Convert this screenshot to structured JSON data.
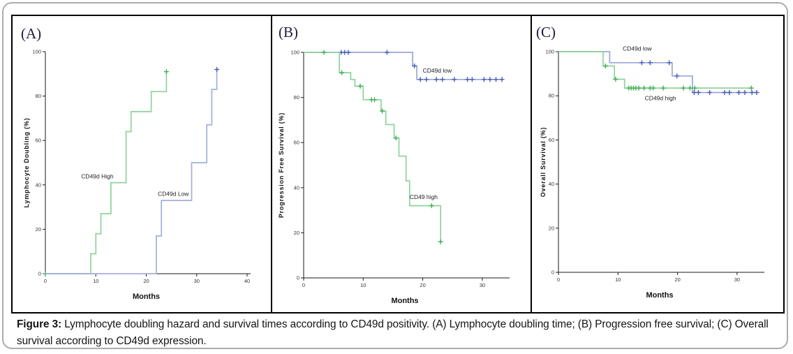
{
  "caption": {
    "label": "Figure 3:",
    "text": " Lymphocyte doubling hazard and survival times according to CD49d positivity. (A) Lymphocyte doubling time; (B) Progression free survival; (C) Overall survival according to CD49d expression."
  },
  "colors": {
    "green_line": "#8FD39B",
    "green_marker": "#3FAE55",
    "blue_line": "#9AA7D9",
    "blue_marker": "#4A5CB8",
    "axis": "#1a1a1a"
  },
  "chart_data": [
    {
      "id": "A",
      "panel_label": "(A)",
      "type": "line",
      "subtype": "kaplan-meier-step",
      "xlabel": "Months",
      "ylabel": "Lymphocyte Doubling (%)",
      "xlim": [
        0,
        40
      ],
      "ylim": [
        0,
        100
      ],
      "x_ticks": [
        0,
        10,
        20,
        30,
        40
      ],
      "y_ticks": [
        0,
        20,
        40,
        60,
        80,
        100
      ],
      "grid": false,
      "series": [
        {
          "name": "CD49d High",
          "color": "#8FD39B",
          "marker_color": "#3FAE55",
          "points": [
            [
              0,
              0
            ],
            [
              9,
              9
            ],
            [
              10,
              18
            ],
            [
              11,
              27
            ],
            [
              13,
              41
            ],
            [
              16,
              64
            ],
            [
              17,
              73
            ],
            [
              21,
              82
            ],
            [
              24,
              91
            ]
          ],
          "censors": [
            [
              0,
              0
            ],
            [
              24,
              91
            ]
          ],
          "label": {
            "text": "CD49d High",
            "x": 7.1,
            "y": 43
          }
        },
        {
          "name": "CD49d Low",
          "color": "#A3AEDC",
          "marker_color": "#4A5CB8",
          "points": [
            [
              0,
              0
            ],
            [
              22,
              17
            ],
            [
              23,
              33
            ],
            [
              29,
              50
            ],
            [
              32,
              67
            ],
            [
              33,
              83
            ],
            [
              34,
              92
            ]
          ],
          "censors": [
            [
              34,
              92
            ]
          ],
          "label": {
            "text": "CD49d Low",
            "x": 22.3,
            "y": 35
          }
        }
      ]
    },
    {
      "id": "B",
      "panel_label": "(B)",
      "type": "line",
      "subtype": "kaplan-meier-step",
      "xlabel": "Months",
      "ylabel": "Progression Free Survival (%)",
      "xlim": [
        0,
        34
      ],
      "ylim": [
        0,
        100
      ],
      "x_ticks": [
        0,
        10,
        20,
        30
      ],
      "y_ticks": [
        0,
        20,
        40,
        60,
        80,
        100
      ],
      "grid": false,
      "series": [
        {
          "name": "CD49d low",
          "color": "#9AA7D9",
          "marker_color": "#4A5CB8",
          "points": [
            [
              0,
              100
            ],
            [
              18.3,
              94
            ],
            [
              19,
              88
            ],
            [
              33.5,
              88
            ]
          ],
          "censors": [
            [
              6.3,
              100
            ],
            [
              6.9,
              100
            ],
            [
              7.5,
              100
            ],
            [
              14,
              100
            ],
            [
              18.6,
              94
            ],
            [
              19.6,
              88
            ],
            [
              20.6,
              88
            ],
            [
              22.3,
              88
            ],
            [
              23.3,
              88
            ],
            [
              25.3,
              88
            ],
            [
              27.5,
              88
            ],
            [
              28.3,
              88
            ],
            [
              30.3,
              88
            ],
            [
              31.3,
              88
            ],
            [
              32.3,
              88
            ],
            [
              33.3,
              88
            ]
          ],
          "label": {
            "text": "CD49d low",
            "x": 20.0,
            "y": 91
          }
        },
        {
          "name": "CD49 high",
          "color": "#8FD39B",
          "marker_color": "#3FAE55",
          "points": [
            [
              0,
              100
            ],
            [
              6,
              91
            ],
            [
              7.9,
              88
            ],
            [
              8.6,
              85
            ],
            [
              10,
              79
            ],
            [
              13,
              74
            ],
            [
              13.8,
              68
            ],
            [
              15.2,
              62
            ],
            [
              16,
              54
            ],
            [
              17.2,
              43
            ],
            [
              17.8,
              32
            ],
            [
              23,
              32
            ],
            [
              23,
              16
            ]
          ],
          "censors": [
            [
              3.4,
              100
            ],
            [
              6.4,
              91
            ],
            [
              9.5,
              85
            ],
            [
              11.4,
              79
            ],
            [
              11.9,
              79
            ],
            [
              13.2,
              74
            ],
            [
              15.5,
              62
            ],
            [
              21.5,
              32
            ],
            [
              23,
              16
            ]
          ],
          "label": {
            "text": "CD49 high",
            "x": 17.8,
            "y": 35
          }
        }
      ]
    },
    {
      "id": "C",
      "panel_label": "(C)",
      "type": "line",
      "subtype": "kaplan-meier-step",
      "xlabel": "Months",
      "ylabel": "Overall Survival (%)",
      "xlim": [
        0,
        34
      ],
      "ylim": [
        0,
        100
      ],
      "x_ticks": [
        0,
        10,
        20,
        30
      ],
      "y_ticks": [
        0,
        20,
        40,
        60,
        80,
        100
      ],
      "grid": false,
      "series": [
        {
          "name": "CD49d low",
          "color": "#9AA7D9",
          "marker_color": "#4A5CB8",
          "points": [
            [
              0,
              100
            ],
            [
              8.6,
              95
            ],
            [
              19.1,
              89
            ],
            [
              22.5,
              81.5
            ],
            [
              33.5,
              81.5
            ]
          ],
          "censors": [
            [
              14,
              95
            ],
            [
              15.4,
              95
            ],
            [
              18.6,
              95
            ],
            [
              19.9,
              89
            ],
            [
              22.8,
              81.5
            ],
            [
              23.5,
              81.5
            ],
            [
              25.4,
              81.5
            ],
            [
              27.9,
              81.5
            ],
            [
              28.7,
              81.5
            ],
            [
              30.3,
              81.5
            ],
            [
              31.3,
              81.5
            ],
            [
              32.5,
              81.5
            ],
            [
              33.3,
              81.5
            ]
          ],
          "label": {
            "text": "CD49d low",
            "x": 10.8,
            "y": 100.5
          }
        },
        {
          "name": "CD49d high",
          "color": "#8FD39B",
          "marker_color": "#3FAE55",
          "points": [
            [
              0,
              100
            ],
            [
              7.5,
              93.5
            ],
            [
              9.4,
              87.5
            ],
            [
              11.1,
              83.5
            ],
            [
              32.5,
              83.5
            ]
          ],
          "censors": [
            [
              7.9,
              93.5
            ],
            [
              9.6,
              87.5
            ],
            [
              11.8,
              83.5
            ],
            [
              12.2,
              83.5
            ],
            [
              12.6,
              83.5
            ],
            [
              13.0,
              83.5
            ],
            [
              13.5,
              83.5
            ],
            [
              14.4,
              83.5
            ],
            [
              15.4,
              83.5
            ],
            [
              15.9,
              83.5
            ],
            [
              17.6,
              83.5
            ],
            [
              21.0,
              83.5
            ],
            [
              22.1,
              83.5
            ],
            [
              22.9,
              83.5
            ],
            [
              32.4,
              83.5
            ]
          ],
          "label": {
            "text": "CD49d high",
            "x": 14.5,
            "y": 78
          }
        }
      ]
    }
  ]
}
